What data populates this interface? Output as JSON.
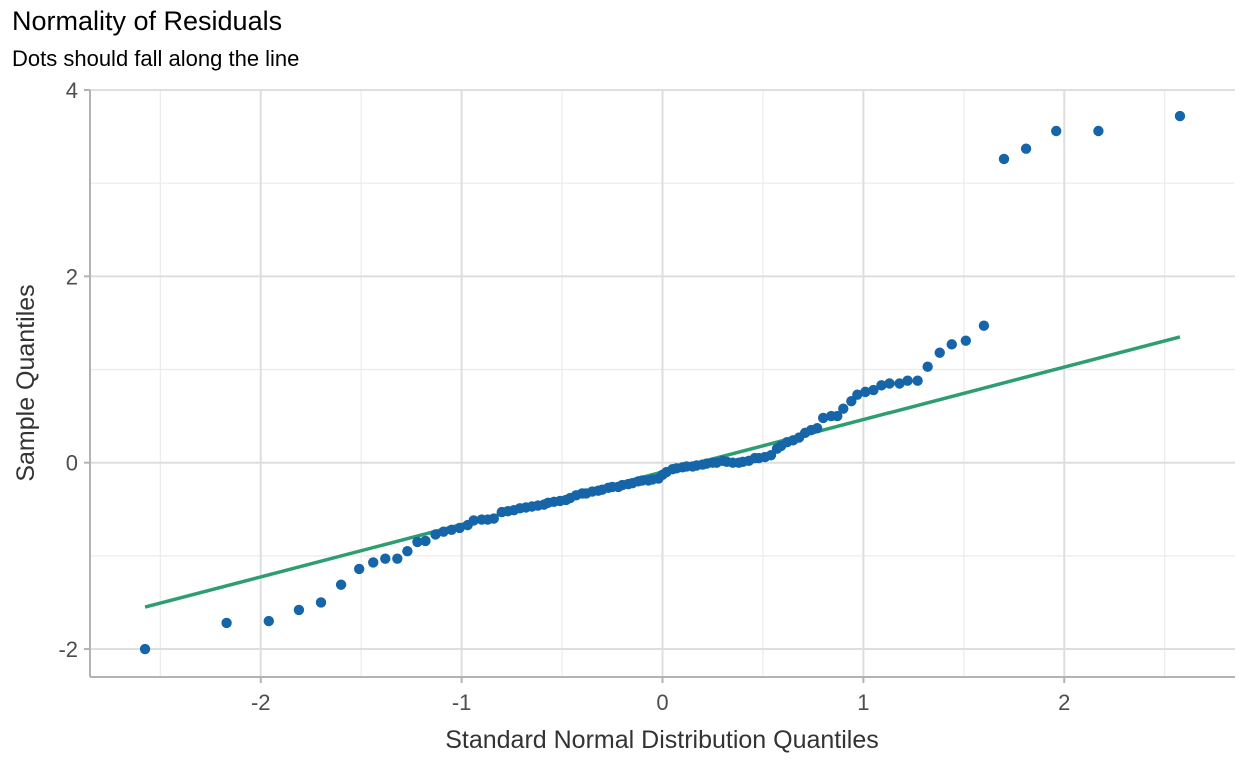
{
  "chart_data": {
    "type": "scatter",
    "title": "Normality of Residuals",
    "subtitle": "Dots should fall along the line",
    "xlabel": "Standard Normal Distribution Quantiles",
    "ylabel": "Sample Quantiles",
    "xlim": [
      -2.85,
      2.85
    ],
    "ylim": [
      -2.3,
      4.0
    ],
    "x_ticks": [
      -2,
      -1,
      0,
      1,
      2
    ],
    "x_tick_labels": [
      "-2",
      "-1",
      "0",
      "1",
      "2"
    ],
    "y_ticks": [
      -2,
      0,
      2,
      4
    ],
    "y_tick_labels": [
      "-2",
      "0",
      "2",
      "4"
    ],
    "grid": true,
    "point_color": "#1565a8",
    "line_color": "#2e9e72",
    "reference_line": {
      "x": [
        -2.576,
        2.576
      ],
      "y": [
        -1.55,
        1.35
      ]
    },
    "points": {
      "x": [
        -2.576,
        -2.17,
        -1.96,
        -1.81,
        -1.7,
        -1.6,
        -1.51,
        -1.44,
        -1.38,
        -1.32,
        -1.27,
        -1.22,
        -1.18,
        -1.13,
        -1.09,
        -1.05,
        -1.01,
        -0.97,
        -0.94,
        -0.9,
        -0.87,
        -0.84,
        -0.8,
        -0.77,
        -0.74,
        -0.71,
        -0.68,
        -0.65,
        -0.62,
        -0.59,
        -0.57,
        -0.54,
        -0.51,
        -0.48,
        -0.46,
        -0.43,
        -0.4,
        -0.38,
        -0.35,
        -0.32,
        -0.3,
        -0.27,
        -0.25,
        -0.22,
        -0.2,
        -0.17,
        -0.15,
        -0.12,
        -0.1,
        -0.07,
        -0.05,
        -0.02,
        0.0,
        0.02,
        0.05,
        0.07,
        0.1,
        0.12,
        0.15,
        0.17,
        0.2,
        0.22,
        0.25,
        0.27,
        0.3,
        0.32,
        0.35,
        0.38,
        0.4,
        0.43,
        0.46,
        0.48,
        0.51,
        0.54,
        0.57,
        0.59,
        0.62,
        0.65,
        0.68,
        0.71,
        0.74,
        0.77,
        0.8,
        0.84,
        0.87,
        0.9,
        0.94,
        0.97,
        1.01,
        1.05,
        1.09,
        1.13,
        1.18,
        1.22,
        1.27,
        1.32,
        1.38,
        1.44,
        1.51,
        1.6,
        1.7,
        1.81,
        1.96,
        2.17,
        2.576
      ],
      "y": [
        -2.0,
        -1.72,
        -1.7,
        -1.58,
        -1.5,
        -1.31,
        -1.14,
        -1.07,
        -1.03,
        -1.03,
        -0.95,
        -0.85,
        -0.84,
        -0.77,
        -0.74,
        -0.72,
        -0.7,
        -0.67,
        -0.62,
        -0.61,
        -0.61,
        -0.6,
        -0.53,
        -0.52,
        -0.51,
        -0.49,
        -0.48,
        -0.47,
        -0.46,
        -0.45,
        -0.43,
        -0.42,
        -0.41,
        -0.4,
        -0.38,
        -0.35,
        -0.33,
        -0.33,
        -0.31,
        -0.3,
        -0.29,
        -0.27,
        -0.26,
        -0.26,
        -0.24,
        -0.23,
        -0.22,
        -0.2,
        -0.19,
        -0.19,
        -0.18,
        -0.17,
        -0.13,
        -0.1,
        -0.07,
        -0.06,
        -0.05,
        -0.04,
        -0.04,
        -0.03,
        -0.02,
        -0.01,
        0.0,
        0.0,
        0.02,
        0.01,
        0.0,
        0.0,
        0.01,
        0.02,
        0.05,
        0.05,
        0.06,
        0.08,
        0.15,
        0.18,
        0.22,
        0.24,
        0.27,
        0.32,
        0.35,
        0.37,
        0.48,
        0.5,
        0.5,
        0.58,
        0.66,
        0.73,
        0.76,
        0.78,
        0.83,
        0.85,
        0.85,
        0.88,
        0.88,
        1.03,
        1.18,
        1.27,
        1.31,
        1.47,
        3.26,
        3.37,
        3.56,
        3.56,
        3.72
      ]
    }
  }
}
